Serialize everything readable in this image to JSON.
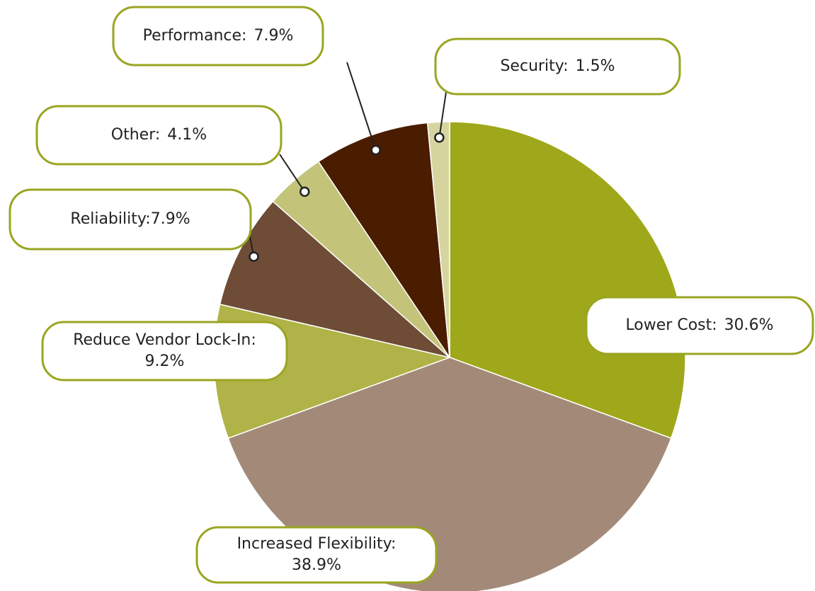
{
  "chart_data": {
    "type": "pie",
    "categories": [
      "Lower Cost:",
      "Increased Flexibility:",
      "Reduce Vendor Lock-In:",
      "Reliability:",
      "Other:",
      "Performance:",
      "Security:"
    ],
    "values": [
      30.6,
      38.9,
      9.2,
      7.9,
      4.1,
      7.9,
      1.5
    ],
    "value_labels": [
      "30.6%",
      "38.9%",
      "9.2%",
      "7.9%",
      "4.1%",
      "7.9%",
      "1.5%"
    ],
    "colors": [
      "#9fa81a",
      "#a38a78",
      "#b0b347",
      "#6e4c36",
      "#c3c47a",
      "#4a1c00",
      "#d6d5a0"
    ]
  }
}
